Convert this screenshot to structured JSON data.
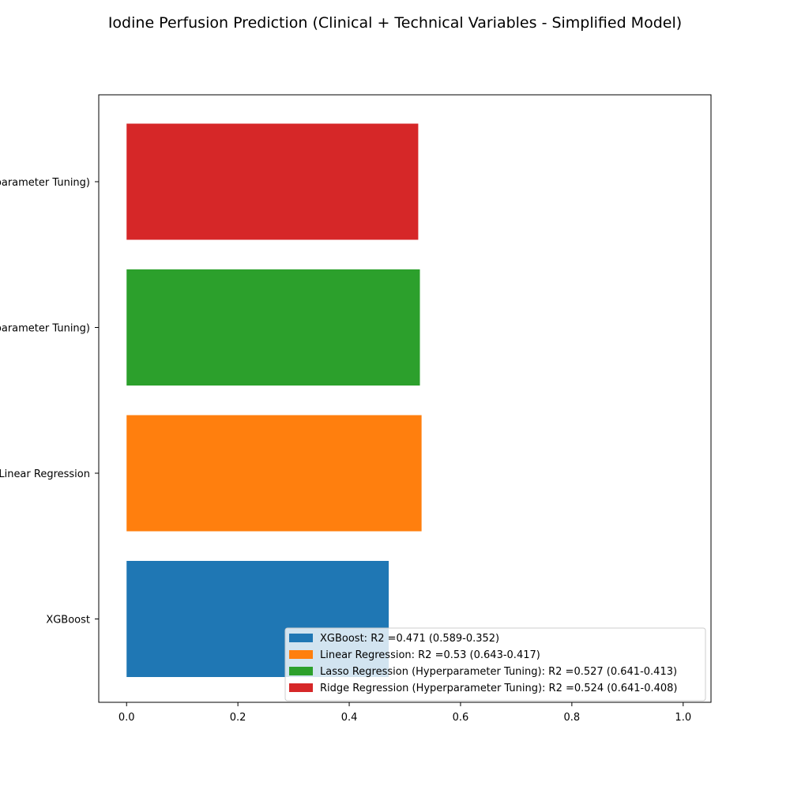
{
  "chart_data": {
    "type": "bar",
    "orientation": "horizontal",
    "title": "Iodine Perfusion Prediction (Clinical + Technical Variables - Simplified Model)",
    "xlabel": "",
    "ylabel": "",
    "xlim": [
      -0.05,
      1.05
    ],
    "x_ticks": [
      "0.0",
      "0.2",
      "0.4",
      "0.6",
      "0.8",
      "1.0"
    ],
    "x_tick_values": [
      0.0,
      0.2,
      0.4,
      0.6,
      0.8,
      1.0
    ],
    "categories": [
      "XGBoost",
      "Linear Regression",
      "Lasso Regression (Hyperparameter Tuning)",
      "Ridge Regression (Hyperparameter Tuning)"
    ],
    "values": [
      0.471,
      0.53,
      0.527,
      0.524
    ],
    "colors": [
      "#1f77b4",
      "#ff7f0e",
      "#2ca02c",
      "#d62728"
    ],
    "legend_placement": "lower-right",
    "legend": [
      "XGBoost: R2 =0.471 (0.589-0.352)",
      "Linear Regression: R2 =0.53 (0.643-0.417)",
      "Lasso Regression (Hyperparameter Tuning): R2 =0.527 (0.641-0.413)",
      "Ridge Regression (Hyperparameter Tuning): R2 =0.524 (0.641-0.408)"
    ],
    "grid": false
  }
}
